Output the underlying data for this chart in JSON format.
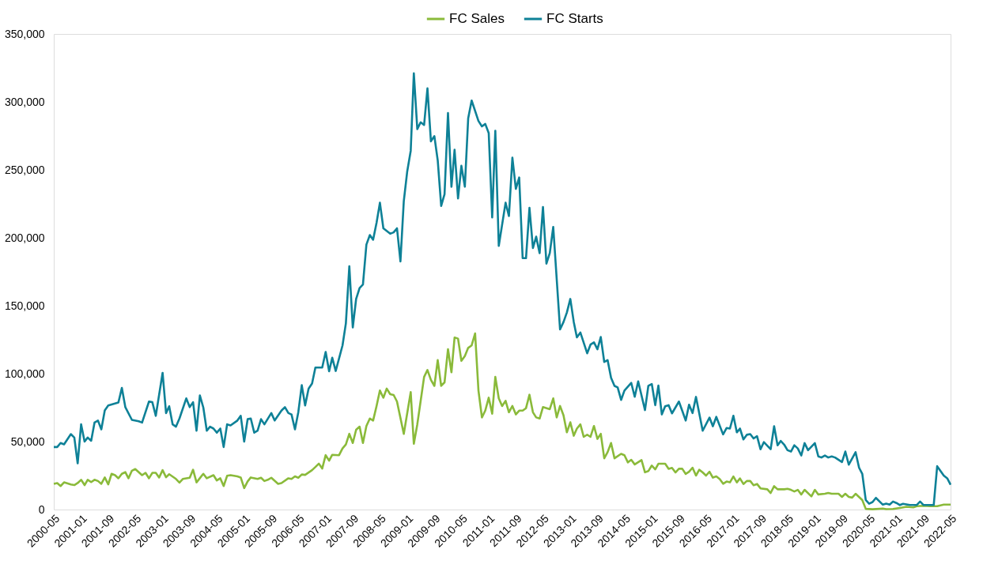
{
  "chart_data": {
    "type": "line",
    "legend": "top",
    "grid": false,
    "marker": "none",
    "line_style": "solid",
    "ylim": [
      0,
      350000
    ],
    "yticks": [
      0,
      {
        "value": 50000,
        "label": "50,000"
      },
      {
        "value": 100000,
        "label": "100,000"
      },
      {
        "value": 150000,
        "label": "150,000"
      },
      {
        "value": 200000,
        "label": "200,000"
      },
      {
        "value": 250000,
        "label": "250,000"
      },
      {
        "value": 300000,
        "label": "300,000"
      },
      {
        "value": 350000,
        "label": "350,000"
      }
    ],
    "xlim": [
      "2000-05",
      "2022-05"
    ],
    "xticks": [
      "2000-05",
      "2001-01",
      "2001-09",
      "2002-05",
      "2003-01",
      "2003-09",
      "2004-05",
      "2005-01",
      "2005-09",
      "2006-05",
      "2007-01",
      "2007-09",
      "2008-05",
      "2009-01",
      "2009-09",
      "2010-05",
      "2011-01",
      "2011-09",
      "2012-05",
      "2013-01",
      "2013-09",
      "2014-05",
      "2015-01",
      "2015-09",
      "2016-05",
      "2017-01",
      "2017-09",
      "2018-05",
      "2019-01",
      "2019-09",
      "2020-05",
      "2021-01",
      "2021-09",
      "2022-05"
    ],
    "series": [
      {
        "name": "FC Sales",
        "color": "#8aba3a",
        "x": [
          "2000-05",
          "2000-06",
          "2000-07",
          "2000-08",
          "2000-10",
          "2000-11",
          "2000-12",
          "2001-01",
          "2001-02",
          "2001-03",
          "2001-04",
          "2001-05",
          "2001-06",
          "2001-07",
          "2001-08",
          "2001-09",
          "2001-10",
          "2001-11",
          "2001-12",
          "2002-01",
          "2002-02",
          "2002-03",
          "2002-04",
          "2002-05",
          "2002-07",
          "2002-08",
          "2002-09",
          "2002-10",
          "2002-11",
          "2002-12",
          "2003-01",
          "2003-02",
          "2003-03",
          "2003-05",
          "2003-06",
          "2003-07",
          "2003-09",
          "2003-10",
          "2003-11",
          "2004-01",
          "2004-02",
          "2004-04",
          "2004-05",
          "2004-06",
          "2004-07",
          "2004-08",
          "2004-09",
          "2004-11",
          "2004-12",
          "2005-01",
          "2005-02",
          "2005-03",
          "2005-05",
          "2005-06",
          "2005-07",
          "2005-08",
          "2005-09",
          "2005-11",
          "2005-12",
          "2006-02",
          "2006-03",
          "2006-04",
          "2006-05",
          "2006-06",
          "2006-07",
          "2006-09",
          "2006-10",
          "2006-11",
          "2006-12",
          "2007-01",
          "2007-02",
          "2007-03",
          "2007-05",
          "2007-06",
          "2007-07",
          "2007-08",
          "2007-09",
          "2007-10",
          "2007-11",
          "2007-12",
          "2008-01",
          "2008-02",
          "2008-03",
          "2008-04",
          "2008-05",
          "2008-06",
          "2008-07",
          "2008-08",
          "2008-09",
          "2008-10",
          "2008-12",
          "2009-02",
          "2009-03",
          "2009-04",
          "2009-06",
          "2009-07",
          "2009-08",
          "2009-09",
          "2009-10",
          "2009-11",
          "2009-12",
          "2010-01",
          "2010-02",
          "2010-03",
          "2010-04",
          "2010-05",
          "2010-06",
          "2010-07",
          "2010-08",
          "2010-09",
          "2010-10",
          "2010-11",
          "2010-12",
          "2011-01",
          "2011-02",
          "2011-03",
          "2011-04",
          "2011-05",
          "2011-06",
          "2011-07",
          "2011-08",
          "2011-09",
          "2011-10",
          "2011-11",
          "2011-12",
          "2012-01",
          "2012-02",
          "2012-03",
          "2012-04",
          "2012-05",
          "2012-07",
          "2012-08",
          "2012-09",
          "2012-10",
          "2012-11",
          "2012-12",
          "2013-01",
          "2013-02",
          "2013-03",
          "2013-04",
          "2013-05",
          "2013-06",
          "2013-07",
          "2013-08",
          "2013-09",
          "2013-10",
          "2013-11",
          "2013-12",
          "2014-01",
          "2014-02",
          "2014-04",
          "2014-05",
          "2014-06",
          "2014-07",
          "2014-08",
          "2014-10",
          "2014-11",
          "2014-12",
          "2015-01",
          "2015-02",
          "2015-03",
          "2015-05",
          "2015-06",
          "2015-07",
          "2015-08",
          "2015-09",
          "2015-10",
          "2015-11",
          "2015-12",
          "2016-01",
          "2016-02",
          "2016-03",
          "2016-04",
          "2016-05",
          "2016-06",
          "2016-07",
          "2016-08",
          "2016-09",
          "2016-10",
          "2016-11",
          "2016-12",
          "2017-01",
          "2017-02",
          "2017-03",
          "2017-04",
          "2017-05",
          "2017-06",
          "2017-07",
          "2017-08",
          "2017-09",
          "2017-11",
          "2017-12",
          "2018-01",
          "2018-02",
          "2018-04",
          "2018-05",
          "2018-06",
          "2018-07",
          "2018-08",
          "2018-09",
          "2018-10",
          "2018-12",
          "2019-01",
          "2019-02",
          "2019-04",
          "2019-05",
          "2019-06",
          "2019-08",
          "2019-09",
          "2019-10",
          "2019-11",
          "2019-12",
          "2020-01",
          "2020-03",
          "2020-04",
          "2020-06",
          "2020-09",
          "2020-10",
          "2020-12",
          "2021-02",
          "2021-04",
          "2021-06",
          "2021-07",
          "2021-09",
          "2021-11",
          "2022-01",
          "2022-03",
          "2022-05"
        ],
        "values": [
          18900,
          19500,
          17300,
          20000,
          18500,
          18000,
          19500,
          21900,
          18000,
          21900,
          20200,
          21900,
          21000,
          18900,
          23600,
          18500,
          26300,
          25300,
          23000,
          26300,
          27500,
          23000,
          28600,
          29800,
          25300,
          27000,
          23000,
          27000,
          27000,
          23600,
          29000,
          23800,
          26000,
          22500,
          19800,
          22500,
          23400,
          29300,
          20000,
          26300,
          23000,
          25300,
          21400,
          23000,
          17300,
          24800,
          25300,
          24400,
          23600,
          15800,
          20700,
          23600,
          22500,
          23400,
          21000,
          21900,
          23400,
          18900,
          19500,
          23000,
          22500,
          24400,
          23400,
          25800,
          25500,
          29000,
          31300,
          33800,
          30200,
          40000,
          36000,
          40300,
          40000,
          45000,
          47900,
          55700,
          49000,
          58700,
          61000,
          49000,
          61500,
          67000,
          65500,
          76200,
          87600,
          82300,
          89000,
          84900,
          84300,
          79500,
          55700,
          86400,
          48400,
          62700,
          97600,
          102700,
          95400,
          91000,
          110000,
          91000,
          93600,
          118000,
          101000,
          126600,
          125800,
          109400,
          113000,
          119000,
          120800,
          129600,
          87600,
          67800,
          72800,
          82300,
          70500,
          97600,
          81800,
          76200,
          80000,
          71600,
          76200,
          70000,
          72800,
          72800,
          74600,
          84500,
          71600,
          67800,
          67000,
          75400,
          73900,
          81800,
          67800,
          76200,
          69300,
          56800,
          64200,
          54300,
          59600,
          62700,
          53500,
          55100,
          53500,
          61500,
          52000,
          55700,
          37700,
          42200,
          49000,
          37700,
          41000,
          40000,
          34700,
          36600,
          33200,
          36400,
          27400,
          28300,
          32400,
          29600,
          33700,
          33700,
          30000,
          30700,
          27300,
          30000,
          30000,
          26200,
          27800,
          30800,
          25000,
          29300,
          27300,
          25000,
          27800,
          23500,
          24400,
          22400,
          19000,
          20600,
          20000,
          24400,
          20000,
          22900,
          18800,
          21000,
          21000,
          17900,
          18800,
          15600,
          14900,
          12200,
          17200,
          14900,
          14900,
          15300,
          14500,
          13300,
          14500,
          11100,
          14500,
          9700,
          14500,
          11100,
          11600,
          12200,
          11600,
          11600,
          9300,
          11600,
          9300,
          8800,
          11600,
          7000,
          500,
          200,
          700,
          300,
          400,
          1200,
          2000,
          1600,
          2500,
          2800,
          2500,
          2500,
          3600,
          3600
        ]
      },
      {
        "name": "FC Starts",
        "color": "#0e8197",
        "x": [
          "2000-05",
          "2000-06",
          "2000-07",
          "2000-08",
          "2000-10",
          "2000-11",
          "2000-12",
          "2001-01",
          "2001-02",
          "2001-03",
          "2001-04",
          "2001-05",
          "2001-06",
          "2001-07",
          "2001-08",
          "2001-09",
          "2001-12",
          "2002-01",
          "2002-02",
          "2002-04",
          "2002-06",
          "2002-07",
          "2002-09",
          "2002-10",
          "2002-11",
          "2003-01",
          "2003-02",
          "2003-03",
          "2003-04",
          "2003-05",
          "2003-06",
          "2003-08",
          "2003-09",
          "2003-10",
          "2003-11",
          "2003-12",
          "2004-01",
          "2004-02",
          "2004-03",
          "2004-04",
          "2004-05",
          "2004-06",
          "2004-07",
          "2004-08",
          "2004-09",
          "2004-11",
          "2004-12",
          "2005-01",
          "2005-02",
          "2005-03",
          "2005-04",
          "2005-05",
          "2005-06",
          "2005-07",
          "2005-09",
          "2005-10",
          "2005-12",
          "2006-01",
          "2006-02",
          "2006-03",
          "2006-04",
          "2006-05",
          "2006-06",
          "2006-07",
          "2006-08",
          "2006-09",
          "2006-10",
          "2006-12",
          "2007-01",
          "2007-02",
          "2007-03",
          "2007-04",
          "2007-06",
          "2007-07",
          "2007-08",
          "2007-09",
          "2007-10",
          "2007-11",
          "2007-12",
          "2008-01",
          "2008-02",
          "2008-03",
          "2008-04",
          "2008-05",
          "2008-06",
          "2008-08",
          "2008-09",
          "2008-10",
          "2008-11",
          "2008-12",
          "2009-01",
          "2009-02",
          "2009-03",
          "2009-04",
          "2009-05",
          "2009-06",
          "2009-07",
          "2009-08",
          "2009-09",
          "2009-10",
          "2009-11",
          "2009-12",
          "2010-01",
          "2010-02",
          "2010-03",
          "2010-04",
          "2010-05",
          "2010-06",
          "2010-07",
          "2010-08",
          "2010-10",
          "2010-11",
          "2010-12",
          "2011-01",
          "2011-02",
          "2011-03",
          "2011-04",
          "2011-06",
          "2011-07",
          "2011-08",
          "2011-09",
          "2011-10",
          "2011-11",
          "2011-12",
          "2012-01",
          "2012-02",
          "2012-03",
          "2012-04",
          "2012-05",
          "2012-06",
          "2012-07",
          "2012-08",
          "2012-10",
          "2012-11",
          "2012-12",
          "2013-01",
          "2013-02",
          "2013-03",
          "2013-04",
          "2013-06",
          "2013-07",
          "2013-08",
          "2013-09",
          "2013-10",
          "2013-11",
          "2013-12",
          "2014-01",
          "2014-02",
          "2014-03",
          "2014-04",
          "2014-05",
          "2014-07",
          "2014-08",
          "2014-09",
          "2014-11",
          "2014-12",
          "2015-01",
          "2015-02",
          "2015-03",
          "2015-04",
          "2015-05",
          "2015-06",
          "2015-07",
          "2015-09",
          "2015-10",
          "2015-11",
          "2015-12",
          "2016-01",
          "2016-02",
          "2016-04",
          "2016-06",
          "2016-07",
          "2016-08",
          "2016-10",
          "2016-11",
          "2016-12",
          "2017-01",
          "2017-02",
          "2017-03",
          "2017-04",
          "2017-05",
          "2017-06",
          "2017-07",
          "2017-08",
          "2017-09",
          "2017-10",
          "2017-12",
          "2018-01",
          "2018-02",
          "2018-03",
          "2018-04",
          "2018-05",
          "2018-06",
          "2018-07",
          "2018-08",
          "2018-09",
          "2018-10",
          "2018-11",
          "2019-01",
          "2019-02",
          "2019-03",
          "2019-04",
          "2019-05",
          "2019-06",
          "2019-07",
          "2019-09",
          "2019-10",
          "2019-11",
          "2020-01",
          "2020-02",
          "2020-03",
          "2020-04",
          "2020-05",
          "2020-06",
          "2020-07",
          "2020-09",
          "2020-10",
          "2020-11",
          "2020-12",
          "2021-01",
          "2021-02",
          "2021-03",
          "2021-05",
          "2021-07",
          "2021-08",
          "2021-09",
          "2021-12",
          "2022-01",
          "2022-03",
          "2022-04",
          "2022-05"
        ],
        "values": [
          46000,
          46000,
          49000,
          48000,
          55500,
          53000,
          34000,
          62700,
          50000,
          53000,
          50600,
          64000,
          65500,
          59000,
          73000,
          76600,
          78800,
          89500,
          75400,
          66000,
          65000,
          64000,
          79500,
          79000,
          69000,
          100600,
          71000,
          76000,
          62700,
          61000,
          67000,
          81800,
          75400,
          79000,
          58000,
          84000,
          75000,
          58000,
          61000,
          59600,
          56600,
          59600,
          46000,
          62700,
          61900,
          65500,
          69000,
          50000,
          66500,
          67000,
          56600,
          58000,
          66500,
          62700,
          71000,
          65500,
          72800,
          75400,
          71000,
          70000,
          59000,
          71700,
          91500,
          76600,
          89000,
          92700,
          104500,
          104500,
          116000,
          101800,
          111700,
          102000,
          120800,
          137000,
          179000,
          134000,
          155000,
          163000,
          165600,
          195000,
          202000,
          198600,
          211000,
          225800,
          207000,
          203000,
          204000,
          207000,
          182600,
          227000,
          249000,
          264000,
          321000,
          280000,
          285000,
          283000,
          310000,
          271000,
          274800,
          257000,
          223500,
          232000,
          291800,
          237600,
          264800,
          229000,
          253000,
          237600,
          288000,
          301000,
          286000,
          282000,
          283800,
          277000,
          215000,
          278800,
          194000,
          225800,
          216000,
          259000,
          236000,
          244400,
          185000,
          185000,
          222000,
          192500,
          200800,
          188700,
          222700,
          181000,
          188700,
          208000,
          132600,
          138000,
          145000,
          155000,
          138000,
          126700,
          130300,
          115000,
          121400,
          123000,
          118000,
          127000,
          108600,
          110000,
          97000,
          91000,
          89900,
          80700,
          87600,
          93200,
          83000,
          94300,
          73200,
          91000,
          92400,
          76800,
          91200,
          70000,
          76000,
          76800,
          70800,
          79500,
          72700,
          65500,
          77200,
          71000,
          82900,
          58000,
          67700,
          61300,
          68200,
          55300,
          60000,
          59600,
          69000,
          56800,
          59600,
          51600,
          55000,
          55500,
          52300,
          54000,
          44400,
          49600,
          44400,
          61300,
          47300,
          50500,
          47800,
          43700,
          42700,
          47300,
          45000,
          39800,
          48900,
          43700,
          48900,
          39100,
          38300,
          39800,
          38300,
          39100,
          38300,
          35000,
          42700,
          33000,
          42200,
          30800,
          26200,
          7000,
          4300,
          5500,
          8600,
          3600,
          4300,
          3600,
          5900,
          4800,
          3300,
          4200,
          3300,
          3300,
          5900,
          3300,
          3300,
          31900,
          25000,
          23000,
          18300
        ]
      }
    ]
  }
}
